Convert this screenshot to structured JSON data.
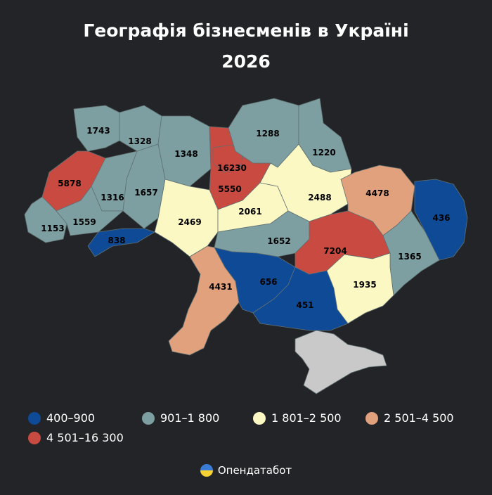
{
  "title": {
    "line1": "Географія бізнесменів в Україні",
    "line2": "2026"
  },
  "colors": {
    "background": "#232427",
    "range_400_900": "#0f4a96",
    "range_901_1800": "#7d9fa1",
    "range_1801_2500": "#fbf8c4",
    "range_2501_4500": "#e2a17d",
    "range_4501_16300": "#c84a40",
    "no_data": "#c9c9c9"
  },
  "legend": [
    {
      "label": "400–900",
      "color": "#0f4a96"
    },
    {
      "label": "901–1 800",
      "color": "#7d9fa1"
    },
    {
      "label": "1 801–2 500",
      "color": "#fbf8c4"
    },
    {
      "label": "2 501–4 500",
      "color": "#e2a17d"
    },
    {
      "label": "4 501–16 300",
      "color": "#c84a40"
    }
  ],
  "regions": [
    {
      "id": "volyn",
      "value": "1743",
      "color": "#7d9fa1"
    },
    {
      "id": "rivne",
      "value": "1328",
      "color": "#7d9fa1"
    },
    {
      "id": "zhytomyr",
      "value": "1348",
      "color": "#7d9fa1"
    },
    {
      "id": "kyiv-city",
      "value": "16230",
      "color": "#c84a40"
    },
    {
      "id": "kyiv-oblast",
      "value": "5550",
      "color": "#c84a40"
    },
    {
      "id": "chernihiv",
      "value": "1288",
      "color": "#7d9fa1"
    },
    {
      "id": "sumy",
      "value": "1220",
      "color": "#7d9fa1"
    },
    {
      "id": "lviv",
      "value": "5878",
      "color": "#c84a40"
    },
    {
      "id": "ternopil",
      "value": "1316",
      "color": "#7d9fa1"
    },
    {
      "id": "khmelnytskyi",
      "value": "1657",
      "color": "#7d9fa1"
    },
    {
      "id": "zakarpattia",
      "value": "1153",
      "color": "#7d9fa1"
    },
    {
      "id": "ivano-frankivsk",
      "value": "1559",
      "color": "#7d9fa1"
    },
    {
      "id": "chernivtsi",
      "value": "838",
      "color": "#0f4a96"
    },
    {
      "id": "vinnytsia",
      "value": "2469",
      "color": "#fbf8c4"
    },
    {
      "id": "cherkasy",
      "value": "2061",
      "color": "#fbf8c4"
    },
    {
      "id": "poltava",
      "value": "2488",
      "color": "#fbf8c4"
    },
    {
      "id": "kharkiv",
      "value": "4478",
      "color": "#e2a17d"
    },
    {
      "id": "luhansk",
      "value": "436",
      "color": "#0f4a96"
    },
    {
      "id": "kirovohrad",
      "value": "1652",
      "color": "#7d9fa1"
    },
    {
      "id": "dnipro",
      "value": "7204",
      "color": "#c84a40"
    },
    {
      "id": "donetsk",
      "value": "1365",
      "color": "#7d9fa1"
    },
    {
      "id": "odesa",
      "value": "4431",
      "color": "#e2a17d"
    },
    {
      "id": "mykolaiv",
      "value": "656",
      "color": "#0f4a96"
    },
    {
      "id": "kherson",
      "value": "451",
      "color": "#0f4a96"
    },
    {
      "id": "zaporizhzhia",
      "value": "1935",
      "color": "#fbf8c4"
    },
    {
      "id": "crimea",
      "value": "",
      "color": "#c9c9c9"
    }
  ],
  "brand": {
    "name": "Опендатабот",
    "icon": "opendatabot-logo-icon"
  }
}
